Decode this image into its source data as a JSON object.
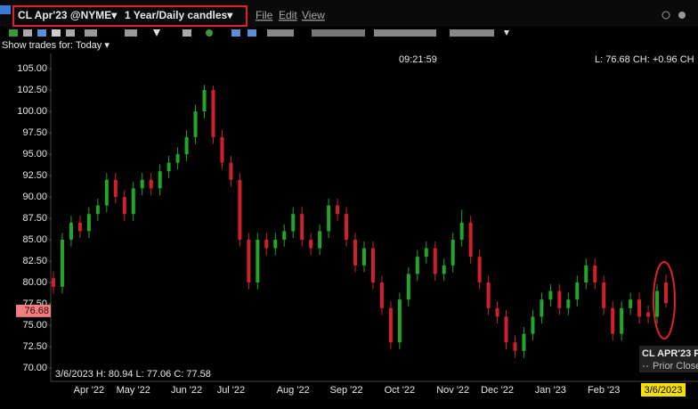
{
  "toolbar": {
    "symbol": "CL Apr'23 @NYME▾",
    "period": "1 Year/Daily candles▾",
    "menus": [
      "File",
      "Edit",
      "View"
    ],
    "trades_for": "Show trades for: Today ▾"
  },
  "chart_data": {
    "type": "candlestick",
    "clock": "09:21:59",
    "quote": "L: 76.68 CH: +0.96 CH",
    "info": "3/6/2023 H: 80.94 L: 77.06 C: 77.58",
    "last_price": 76.68,
    "legend": [
      "CL APR'23 F",
      "Prior Close"
    ],
    "up_color": "#22a52a",
    "down_color": "#d0202c",
    "ylim": [
      70,
      105
    ],
    "yticks": [
      {
        "value": 70,
        "label": "70.00"
      },
      {
        "value": 72.5,
        "label": "72.50"
      },
      {
        "value": 75,
        "label": "75.00"
      },
      {
        "value": 77.5,
        "label": "77.50"
      },
      {
        "value": 80,
        "label": "80.00"
      },
      {
        "value": 82.5,
        "label": "82.50"
      },
      {
        "value": 85,
        "label": "85.00"
      },
      {
        "value": 87.5,
        "label": "87.50"
      },
      {
        "value": 90,
        "label": "90.00"
      },
      {
        "value": 92.5,
        "label": "92.50"
      },
      {
        "value": 95,
        "label": "95.00"
      },
      {
        "value": 97.5,
        "label": "97.50"
      },
      {
        "value": 100,
        "label": "100.00"
      },
      {
        "value": 102.5,
        "label": "102.50"
      },
      {
        "value": 105,
        "label": "105.00"
      }
    ],
    "categories": [
      null,
      null,
      null,
      null,
      "Apr '22",
      null,
      null,
      null,
      null,
      "May '22",
      null,
      null,
      null,
      null,
      null,
      "Jun '22",
      null,
      null,
      null,
      null,
      "Jul '22",
      null,
      null,
      null,
      null,
      null,
      null,
      "Aug '22",
      null,
      null,
      null,
      null,
      null,
      "Sep '22",
      null,
      null,
      null,
      null,
      null,
      "Oct '22",
      null,
      null,
      null,
      null,
      null,
      "Nov '22",
      null,
      null,
      null,
      null,
      "Dec '22",
      null,
      null,
      null,
      null,
      null,
      "Jan '23",
      null,
      null,
      null,
      null,
      null,
      "Feb '23",
      null,
      null,
      null,
      null,
      null,
      null,
      "3/6/2023"
    ],
    "open": [
      80.5,
      79.5,
      85,
      87,
      86,
      88,
      89,
      92,
      90,
      88,
      91,
      92,
      91,
      93,
      94,
      95,
      97,
      100,
      102.5,
      97,
      94,
      92,
      85,
      80,
      85,
      84,
      85,
      86,
      88,
      85,
      84,
      86,
      89,
      88,
      85,
      82,
      84,
      80,
      77,
      73,
      78,
      81,
      83,
      84,
      81,
      82,
      85,
      87,
      83,
      80,
      77,
      76,
      73,
      72,
      74,
      76,
      78,
      79,
      77,
      78,
      80,
      82,
      80,
      77,
      74,
      77,
      78,
      76.5,
      76,
      80
    ],
    "high": [
      81.3,
      85.8,
      87.8,
      87.8,
      88.8,
      89.8,
      92.8,
      92.8,
      90.8,
      91.8,
      92.8,
      92.8,
      93.8,
      94.8,
      95.8,
      97.8,
      100.8,
      103.1,
      103,
      97.8,
      94.8,
      92.8,
      85.8,
      85.8,
      85.8,
      85.8,
      86.8,
      88.8,
      88.8,
      85.8,
      86.8,
      89.8,
      89.8,
      88.8,
      85.8,
      84.8,
      84.8,
      80.8,
      77.8,
      78.8,
      81.8,
      83.8,
      84.8,
      84.8,
      82.8,
      85.8,
      88.5,
      87.8,
      83.8,
      80.8,
      77.8,
      76.8,
      73.8,
      74.8,
      76.8,
      78.8,
      79.8,
      79.8,
      78.8,
      80.8,
      82.8,
      82.8,
      80.8,
      77.8,
      77.8,
      78.8,
      78.8,
      77.3,
      79.8,
      80.94
    ],
    "low": [
      78.7,
      78.7,
      84.2,
      85.2,
      85.2,
      87.2,
      88.2,
      89.2,
      87.2,
      87.2,
      90.2,
      90.2,
      90.2,
      92.2,
      93.2,
      94.2,
      96.2,
      99.2,
      96.2,
      93.2,
      91.2,
      84.2,
      79.2,
      79.2,
      83.2,
      83.2,
      84.2,
      85.2,
      84.2,
      83.2,
      83.2,
      85.2,
      87.2,
      84.2,
      81.2,
      81.2,
      79.2,
      76.2,
      72.2,
      72.2,
      77.2,
      80.2,
      82.2,
      80.2,
      80.2,
      81.2,
      84.2,
      82.2,
      79.2,
      76.2,
      75.2,
      72.2,
      71.2,
      71.2,
      73.2,
      75.2,
      77.2,
      76.2,
      76.2,
      77.2,
      79.2,
      79.2,
      76.2,
      73.2,
      73.2,
      76.2,
      75.2,
      75.2,
      75.2,
      77.06
    ],
    "close": [
      79.5,
      85,
      87,
      86,
      88,
      89,
      92,
      90,
      88,
      91,
      92,
      91,
      93,
      94,
      95,
      97,
      100,
      102.5,
      97,
      94,
      92,
      85,
      80,
      85,
      84,
      85,
      86,
      88,
      85,
      84,
      86,
      89,
      88,
      85,
      82,
      84,
      80,
      77,
      73,
      78,
      81,
      83,
      84,
      81,
      82,
      85,
      87,
      83,
      80,
      77,
      76,
      73,
      72,
      74,
      76,
      78,
      79,
      77,
      78,
      80,
      82,
      80,
      77,
      74,
      77,
      78,
      76,
      76,
      79,
      77.58
    ]
  }
}
